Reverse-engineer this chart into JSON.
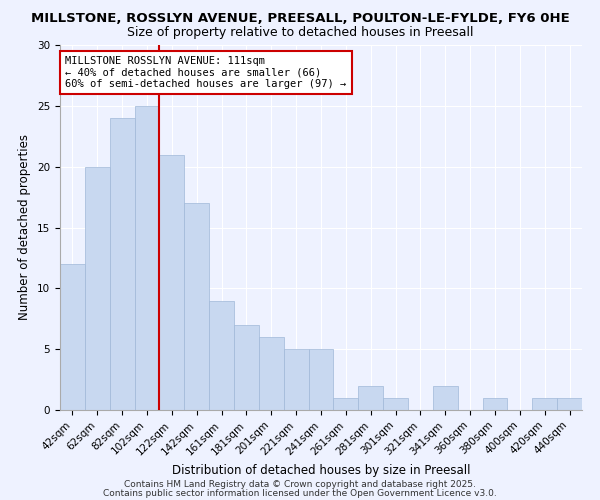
{
  "title1": "MILLSTONE, ROSSLYN AVENUE, PREESALL, POULTON-LE-FYLDE, FY6 0HE",
  "title2": "Size of property relative to detached houses in Preesall",
  "xlabel": "Distribution of detached houses by size in Preesall",
  "ylabel": "Number of detached properties",
  "bar_labels": [
    "42sqm",
    "62sqm",
    "82sqm",
    "102sqm",
    "122sqm",
    "142sqm",
    "161sqm",
    "181sqm",
    "201sqm",
    "221sqm",
    "241sqm",
    "261sqm",
    "281sqm",
    "301sqm",
    "321sqm",
    "341sqm",
    "360sqm",
    "380sqm",
    "400sqm",
    "420sqm",
    "440sqm"
  ],
  "bar_values": [
    12,
    20,
    24,
    25,
    21,
    17,
    9,
    7,
    6,
    5,
    5,
    1,
    2,
    1,
    0,
    2,
    0,
    1,
    0,
    1,
    1
  ],
  "bar_color": "#c8d8f0",
  "bar_edge_color": "#a0b8d8",
  "vline_color": "#cc0000",
  "vline_position": 3.5,
  "annotation_text": "MILLSTONE ROSSLYN AVENUE: 111sqm\n← 40% of detached houses are smaller (66)\n60% of semi-detached houses are larger (97) →",
  "annotation_box_color": "white",
  "annotation_box_edge": "#cc0000",
  "ylim": [
    0,
    30
  ],
  "yticks": [
    0,
    5,
    10,
    15,
    20,
    25,
    30
  ],
  "background_color": "#eef2ff",
  "grid_color": "#ffffff",
  "footer1": "Contains HM Land Registry data © Crown copyright and database right 2025.",
  "footer2": "Contains public sector information licensed under the Open Government Licence v3.0.",
  "title_fontsize": 9.5,
  "subtitle_fontsize": 9,
  "axis_label_fontsize": 8.5,
  "tick_fontsize": 7.5,
  "annotation_fontsize": 7.5,
  "footer_fontsize": 6.5
}
